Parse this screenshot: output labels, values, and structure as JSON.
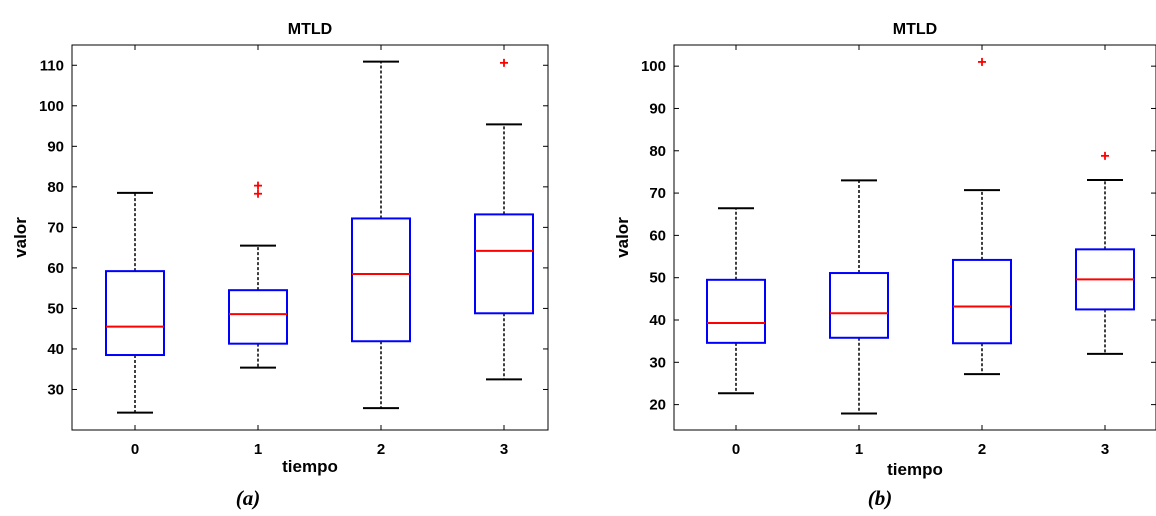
{
  "colors": {
    "box": "#0000ff",
    "median": "#ff0000",
    "whisker": "#000000",
    "outlier": "#ff0000"
  },
  "chart_data": [
    {
      "type": "box",
      "title": "MTLD",
      "xlabel": "tiempo",
      "ylabel": "valor",
      "caption": "(a)",
      "ylim": [
        20,
        115
      ],
      "yticks": [
        30,
        40,
        50,
        60,
        70,
        80,
        90,
        100,
        110
      ],
      "categories": [
        "0",
        "1",
        "2",
        "3"
      ],
      "boxes": [
        {
          "min": 24.3,
          "q1": 38.5,
          "median": 45.5,
          "q3": 59.2,
          "max": 78.5,
          "outliers": []
        },
        {
          "min": 35.4,
          "q1": 41.3,
          "median": 48.6,
          "q3": 54.5,
          "max": 65.5,
          "outliers": [
            78.3,
            80.3
          ]
        },
        {
          "min": 25.4,
          "q1": 41.9,
          "median": 58.5,
          "q3": 72.2,
          "max": 110.9,
          "outliers": []
        },
        {
          "min": 32.5,
          "q1": 48.8,
          "median": 64.2,
          "q3": 73.2,
          "max": 95.4,
          "outliers": [
            110.6
          ]
        }
      ]
    },
    {
      "type": "box",
      "title": "MTLD",
      "xlabel": "tiempo",
      "ylabel": "valor",
      "caption": "(b)",
      "ylim": [
        14,
        105
      ],
      "yticks": [
        20,
        30,
        40,
        50,
        60,
        70,
        80,
        90,
        100
      ],
      "categories": [
        "0",
        "1",
        "2",
        "3"
      ],
      "boxes": [
        {
          "min": 22.7,
          "q1": 34.6,
          "median": 39.3,
          "q3": 49.5,
          "max": 66.4,
          "outliers": []
        },
        {
          "min": 17.9,
          "q1": 35.8,
          "median": 41.6,
          "q3": 51.1,
          "max": 73.0,
          "outliers": []
        },
        {
          "min": 27.2,
          "q1": 34.5,
          "median": 43.2,
          "q3": 54.2,
          "max": 70.7,
          "outliers": [
            101.0
          ]
        },
        {
          "min": 32.0,
          "q1": 42.5,
          "median": 49.6,
          "q3": 56.7,
          "max": 73.1,
          "outliers": [
            78.8
          ]
        }
      ]
    }
  ]
}
